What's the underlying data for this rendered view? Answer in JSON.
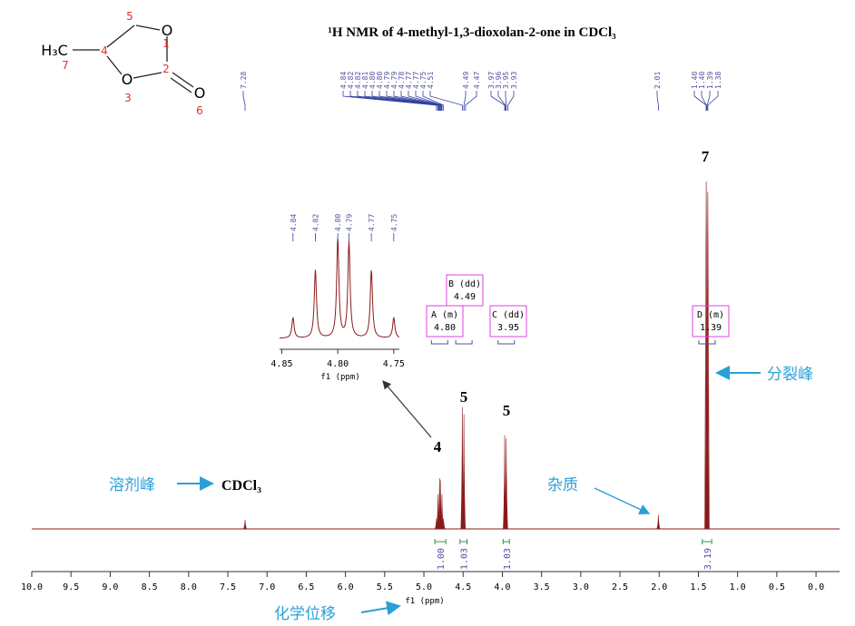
{
  "chart_data": {
    "type": "nmr",
    "title": "¹H NMR of 4-methyl-1,3-dioxolan-2-one in CDCl₃",
    "x_label": "f1 (ppm)",
    "color": "#8b1a1a",
    "xlim": [
      10.0,
      -0.3
    ],
    "xticks": [
      {
        "value": 10,
        "label": "10.0"
      },
      9.5,
      {
        "value": 9,
        "label": "9.0"
      },
      8.5,
      {
        "value": 8,
        "label": "8.0"
      },
      7.5,
      {
        "value": 7,
        "label": "7.0"
      },
      6.5,
      {
        "value": 6,
        "label": "6.0"
      },
      5.5,
      {
        "value": 5,
        "label": "5.0"
      },
      4.5,
      {
        "value": 4,
        "label": "4.0"
      },
      3.5,
      {
        "value": 3,
        "label": "3.0"
      },
      2.5,
      {
        "value": 2,
        "label": "2.0"
      },
      1.5,
      {
        "value": 1,
        "label": "1.0"
      },
      0.5,
      {
        "value": 0,
        "label": "0.0"
      }
    ],
    "x": [
      7.28,
      4.84,
      4.82,
      4.8,
      4.79,
      4.77,
      4.75,
      4.51,
      4.49,
      3.97,
      3.95,
      2.01,
      1.4,
      1.38
    ],
    "values": [
      0.026,
      0.03,
      0.1,
      0.146,
      0.14,
      0.1,
      0.03,
      0.35,
      0.33,
      0.27,
      0.26,
      0.04,
      1.0,
      0.97
    ],
    "peak_labels": [
      "7.28",
      "4.84",
      "4.82",
      "4.82",
      "4.81",
      "4.80",
      "4.80",
      "4.79",
      "4.79",
      "4.78",
      "4.77",
      "4.77",
      "4.75",
      "4.51",
      "4.49",
      "4.47",
      "3.97",
      "3.96",
      "3.95",
      "3.93",
      "2.01",
      "1.40",
      "1.40",
      "1.39",
      "1.38"
    ],
    "inset": {
      "x_label": "f1 (ppm)",
      "xlim": [
        4.852,
        4.745
      ],
      "xticks": [
        4.85,
        {
          "value": 4.8,
          "label": "4.80"
        },
        4.75
      ],
      "peak_labels": [
        "4.84",
        "4.82",
        "4.80",
        "4.79",
        "4.77",
        "4.75"
      ]
    },
    "multiplets": [
      {
        "label": "A (m)",
        "shift": "4.80"
      },
      {
        "label": "B (dd)",
        "shift": "4.49"
      },
      {
        "label": "C (dd)",
        "shift": "3.95"
      },
      {
        "label": "D (m)",
        "shift": "1.39"
      }
    ],
    "integrals": [
      "1.00",
      "1.03",
      "1.03",
      "3.19"
    ],
    "annotations": {
      "h7": "7",
      "h5a": "5",
      "h5b": "5",
      "h4": "4",
      "split": "分裂峰",
      "impurity": "杂质",
      "solvent": "溶剂峰",
      "cdcl3": "CDCl₃",
      "shift": "化学位移"
    },
    "structure": {
      "methyl": "H₃C",
      "o1": "O",
      "o3": "O",
      "o6": "O",
      "n1": "1",
      "n2": "2",
      "n3": "3",
      "n4": "4",
      "n5": "5",
      "n6": "6",
      "n7": "7"
    }
  }
}
